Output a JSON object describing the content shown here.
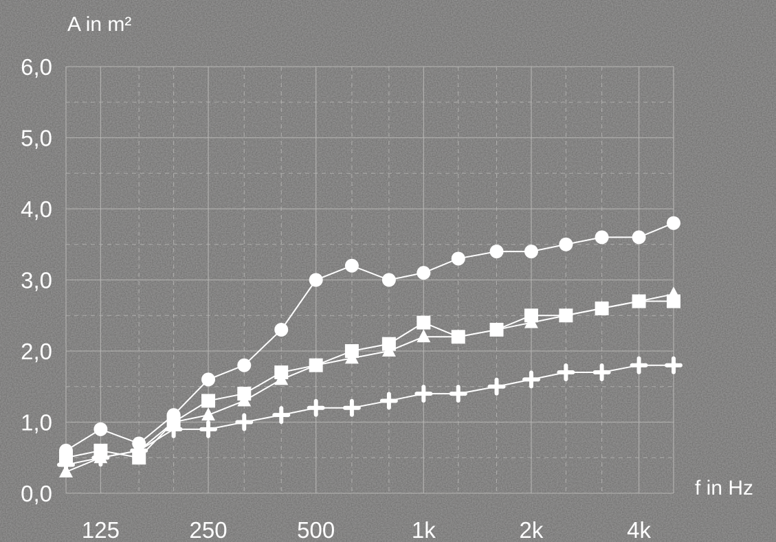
{
  "chart_data": {
    "type": "line",
    "ylabel": "A in m²",
    "xlabel": "f in Hz",
    "x_scale": "log",
    "x_ticks": [
      "125",
      "250",
      "500",
      "1k",
      "2k",
      "4k"
    ],
    "y_ticks": [
      "0,0",
      "1,0",
      "2,0",
      "3,0",
      "4,0",
      "5,0",
      "6,0"
    ],
    "ylim": [
      0,
      6
    ],
    "xlim": [
      100,
      5000
    ],
    "grid": true,
    "x": [
      100,
      125,
      160,
      200,
      250,
      315,
      400,
      500,
      630,
      800,
      1000,
      1250,
      1600,
      2000,
      2500,
      3150,
      4000,
      5000
    ],
    "series": [
      {
        "marker": "circle",
        "values": [
          0.6,
          0.9,
          0.7,
          1.1,
          1.6,
          1.8,
          2.3,
          3.0,
          3.2,
          3.0,
          3.1,
          3.3,
          3.4,
          3.4,
          3.5,
          3.6,
          3.6,
          3.8
        ]
      },
      {
        "marker": "square",
        "values": [
          0.5,
          0.6,
          0.5,
          1.0,
          1.3,
          1.4,
          1.7,
          1.8,
          2.0,
          2.1,
          2.4,
          2.2,
          2.3,
          2.5,
          2.5,
          2.6,
          2.7,
          2.7
        ]
      },
      {
        "marker": "triangle",
        "values": [
          0.3,
          0.5,
          0.6,
          1.0,
          1.1,
          1.3,
          1.6,
          1.8,
          1.9,
          2.0,
          2.2,
          2.2,
          2.3,
          2.4,
          2.5,
          2.6,
          2.7,
          2.8
        ]
      },
      {
        "marker": "cross",
        "values": [
          0.4,
          0.5,
          0.6,
          0.9,
          0.9,
          1.0,
          1.1,
          1.2,
          1.2,
          1.3,
          1.4,
          1.4,
          1.5,
          1.6,
          1.7,
          1.7,
          1.8,
          1.8
        ]
      }
    ],
    "colors": {
      "background": "#6b6a69",
      "grid": "#b8b7b5",
      "line": "#ffffff",
      "text": "#ffffff"
    }
  }
}
